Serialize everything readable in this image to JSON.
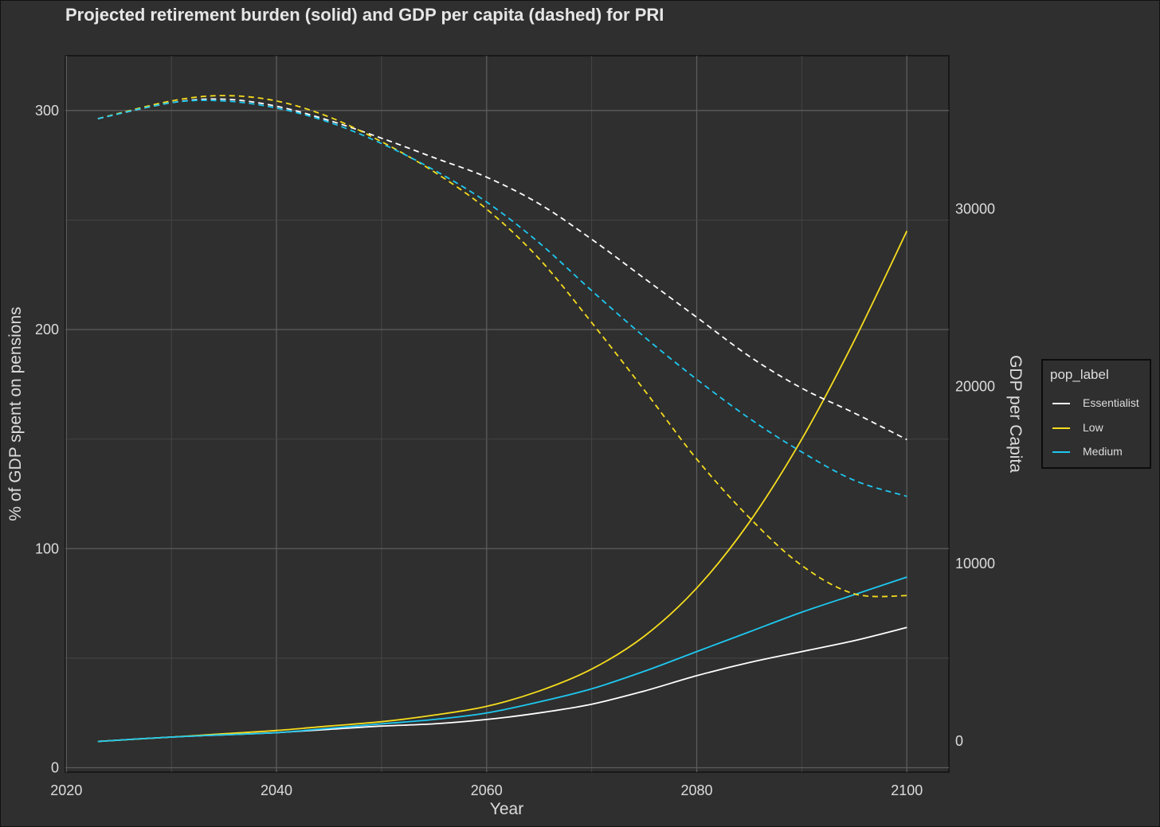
{
  "chart_data": {
    "type": "line",
    "title": "Projected retirement burden (solid) and GDP per capita (dashed) for PRI",
    "xlabel": "Year",
    "ylabel_left": "% of GDP spent on pensions",
    "ylabel_right": "GDP per Capita",
    "xlim": [
      2019.9,
      2104
    ],
    "ylim_left": [
      -2,
      325
    ],
    "ylim_right": [
      -1750,
      38650
    ],
    "x_ticks": [
      2020,
      2040,
      2060,
      2080,
      2100
    ],
    "y_left_ticks": [
      0,
      100,
      200,
      300
    ],
    "y_right_ticks": [
      0,
      10000,
      20000,
      30000
    ],
    "grid": true,
    "legend": {
      "title": "pop_label",
      "position": "right",
      "entries": [
        {
          "name": "Essentialist",
          "color": "#ffffff"
        },
        {
          "name": "Low",
          "color": "#f5dc1e"
        },
        {
          "name": "Medium",
          "color": "#1ec8f0"
        }
      ]
    },
    "x": [
      2023,
      2030,
      2035,
      2040,
      2045,
      2050,
      2055,
      2060,
      2065,
      2070,
      2075,
      2080,
      2085,
      2090,
      2095,
      2100
    ],
    "series": [
      {
        "name": "Essentialist",
        "style": "solid",
        "axis": "left",
        "color": "#ffffff",
        "values": [
          12,
          14,
          15,
          16,
          17.5,
          19,
          20,
          22,
          25,
          29,
          35,
          42,
          48,
          53,
          58,
          64
        ]
      },
      {
        "name": "Low",
        "style": "solid",
        "axis": "left",
        "color": "#f5dc1e",
        "values": [
          12,
          14,
          15.5,
          17,
          19,
          21,
          24,
          28,
          35,
          45,
          60,
          82,
          112,
          150,
          195,
          245
        ]
      },
      {
        "name": "Medium",
        "style": "solid",
        "axis": "left",
        "color": "#1ec8f0",
        "values": [
          12,
          14,
          15,
          16,
          18,
          20,
          22,
          25,
          30,
          36,
          44,
          53,
          62,
          71,
          79,
          87
        ]
      },
      {
        "name": "Essentialist",
        "style": "dashed",
        "axis": "right",
        "color": "#ffffff",
        "values": [
          35100,
          36000,
          36200,
          35800,
          35000,
          34000,
          32900,
          31800,
          30300,
          28300,
          26100,
          23900,
          21700,
          19900,
          18500,
          17000
        ]
      },
      {
        "name": "Low",
        "style": "dashed",
        "axis": "right",
        "color": "#f5dc1e",
        "values": [
          35100,
          36100,
          36400,
          36100,
          35200,
          33800,
          32100,
          30000,
          27200,
          23600,
          19800,
          15900,
          12600,
          9900,
          8300,
          8200
        ]
      },
      {
        "name": "Medium",
        "style": "dashed",
        "axis": "right",
        "color": "#1ec8f0",
        "values": [
          35100,
          36000,
          36100,
          35700,
          34900,
          33700,
          32200,
          30400,
          28100,
          25400,
          22800,
          20400,
          18200,
          16300,
          14700,
          13800
        ]
      }
    ]
  }
}
